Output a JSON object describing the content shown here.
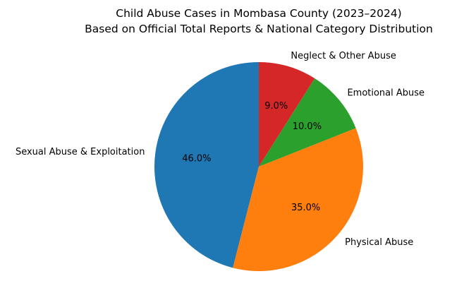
{
  "chart_data": {
    "type": "pie",
    "title_line1": "Child Abuse Cases in Mombasa County (2023–2024)",
    "title_line2": "Based on Official Total Reports & National Category Distribution",
    "start_angle_deg": 90,
    "direction": "counterclockwise",
    "slices": [
      {
        "label": "Sexual Abuse & Exploitation",
        "value": 46.0,
        "pct_label": "46.0%",
        "color": "#1f77b4"
      },
      {
        "label": "Physical Abuse",
        "value": 35.0,
        "pct_label": "35.0%",
        "color": "#ff7f0e"
      },
      {
        "label": "Emotional Abuse",
        "value": 10.0,
        "pct_label": "10.0%",
        "color": "#2ca02c"
      },
      {
        "label": "Neglect & Other Abuse",
        "value": 9.0,
        "pct_label": "9.0%",
        "color": "#d62728"
      }
    ]
  }
}
